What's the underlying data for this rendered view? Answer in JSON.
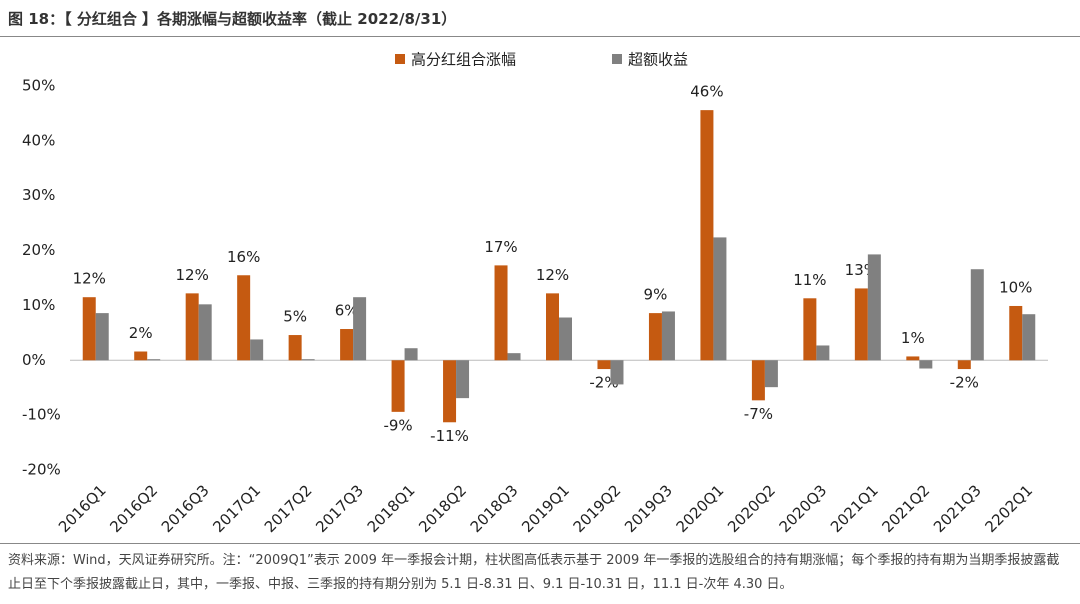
{
  "header": {
    "title": "图 18：【 分红组合 】各期涨幅与超额收益率（截止 2022/8/31）"
  },
  "chart_data": {
    "type": "bar",
    "categories": [
      "2016Q1",
      "2016Q2",
      "2016Q3",
      "2017Q1",
      "2017Q2",
      "2017Q3",
      "2018Q1",
      "2018Q2",
      "2018Q3",
      "2019Q1",
      "2019Q2",
      "2019Q3",
      "2020Q1",
      "2020Q2",
      "2020Q3",
      "2021Q1",
      "2021Q2",
      "2021Q3",
      "2202Q1"
    ],
    "series": [
      {
        "name": "高分红组合涨幅",
        "color": "#c55a11",
        "values": [
          11.5,
          1.6,
          12.2,
          15.5,
          4.6,
          5.7,
          -9.4,
          -11.3,
          17.3,
          12.2,
          -1.6,
          8.6,
          45.6,
          -7.3,
          11.3,
          13.1,
          0.7,
          -1.6,
          9.9
        ],
        "value_labels": [
          "12%",
          "2%",
          "12%",
          "16%",
          "5%",
          "6%",
          "-9%",
          "-11%",
          "17%",
          "12%",
          "-2%",
          "9%",
          "46%",
          "-7%",
          "11%",
          "13%",
          "1%",
          "-2%",
          "10%"
        ]
      },
      {
        "name": "超额收益",
        "color": "#808080",
        "values": [
          8.6,
          0.2,
          10.2,
          3.8,
          0.2,
          11.5,
          2.2,
          -6.9,
          1.3,
          7.8,
          -4.4,
          8.9,
          22.4,
          -4.9,
          2.7,
          19.3,
          -1.5,
          16.6,
          8.4
        ]
      }
    ],
    "ylim": [
      -20,
      50
    ],
    "yticks": [
      {
        "value": -20,
        "label": "-20%"
      },
      {
        "value": -10,
        "label": "-10%"
      },
      {
        "value": 0,
        "label": "0%"
      },
      {
        "value": 10,
        "label": "10%"
      },
      {
        "value": 20,
        "label": "20%"
      },
      {
        "value": 30,
        "label": "30%"
      },
      {
        "value": 40,
        "label": "40%"
      },
      {
        "value": 50,
        "label": "50%"
      }
    ],
    "legend": "top"
  },
  "footer": {
    "source": "资料来源：Wind，天风证券研究所。注：“2009Q1”表示 2009 年一季报会计期，柱状图高低表示基于 2009 年一季报的选股组合的持有期涨幅；每个季报的持有期为当期季报披露截止日至下个季报披露截止日，其中，一季报、中报、三季报的持有期分别为 5.1 日-8.31 日、9.1 日-10.31 日，11.1 日-次年 4.30 日。"
  }
}
